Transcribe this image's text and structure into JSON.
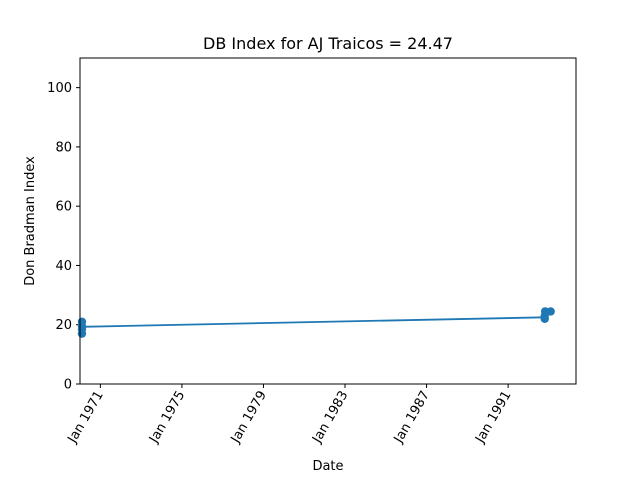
{
  "chart_data": {
    "type": "line",
    "title": "DB Index for AJ Traicos = 24.47",
    "xlabel": "Date",
    "ylabel": "Don Bradman Index",
    "xlim": [
      "1970-01-01",
      "1994-05-01"
    ],
    "ylim": [
      0,
      110
    ],
    "yticks": [
      0,
      20,
      40,
      60,
      80,
      100
    ],
    "xticks": [
      {
        "date": "1971-01-01",
        "label": "Jan 1971"
      },
      {
        "date": "1975-01-01",
        "label": "Jan 1975"
      },
      {
        "date": "1979-01-01",
        "label": "Jan 1979"
      },
      {
        "date": "1983-01-01",
        "label": "Jan 1983"
      },
      {
        "date": "1987-01-01",
        "label": "Jan 1987"
      },
      {
        "date": "1991-01-01",
        "label": "Jan 1991"
      }
    ],
    "grid": false,
    "color": "#1f77b4",
    "points": [
      {
        "date": "1970-02-05",
        "value": 21.0
      },
      {
        "date": "1970-02-05",
        "value": 19.5
      },
      {
        "date": "1970-02-05",
        "value": 18.5
      },
      {
        "date": "1970-02-05",
        "value": 17.0
      },
      {
        "date": "1992-10-18",
        "value": 22.0
      },
      {
        "date": "1992-10-18",
        "value": 23.0
      },
      {
        "date": "1992-10-25",
        "value": 24.5
      },
      {
        "date": "1993-02-01",
        "value": 24.47
      }
    ],
    "trend_line": [
      {
        "date": "1970-02-05",
        "value": 19.3
      },
      {
        "date": "1992-10-18",
        "value": 22.5
      }
    ]
  }
}
